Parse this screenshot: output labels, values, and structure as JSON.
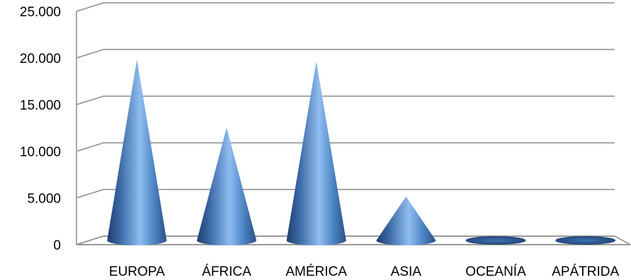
{
  "chart_data": {
    "type": "bar",
    "style": "3d-cone",
    "categories": [
      "EUROPA",
      "ÁFRICA",
      "AMÉRICA",
      "ASIA",
      "OCEANÍA",
      "APÁTRIDA"
    ],
    "values": [
      20000,
      12700,
      19800,
      5300,
      50,
      60
    ],
    "yticks": [
      "0",
      "5.000",
      "10.000",
      "15.000",
      "20.000",
      "25.000"
    ],
    "ylim": [
      0,
      25000
    ],
    "grid": true,
    "legend": "none",
    "colors": {
      "cone_dark": "#1f3e6e",
      "cone_mid": "#4f86c6",
      "cone_light": "#a9cdf5",
      "grid": "#8c8c8c"
    }
  }
}
